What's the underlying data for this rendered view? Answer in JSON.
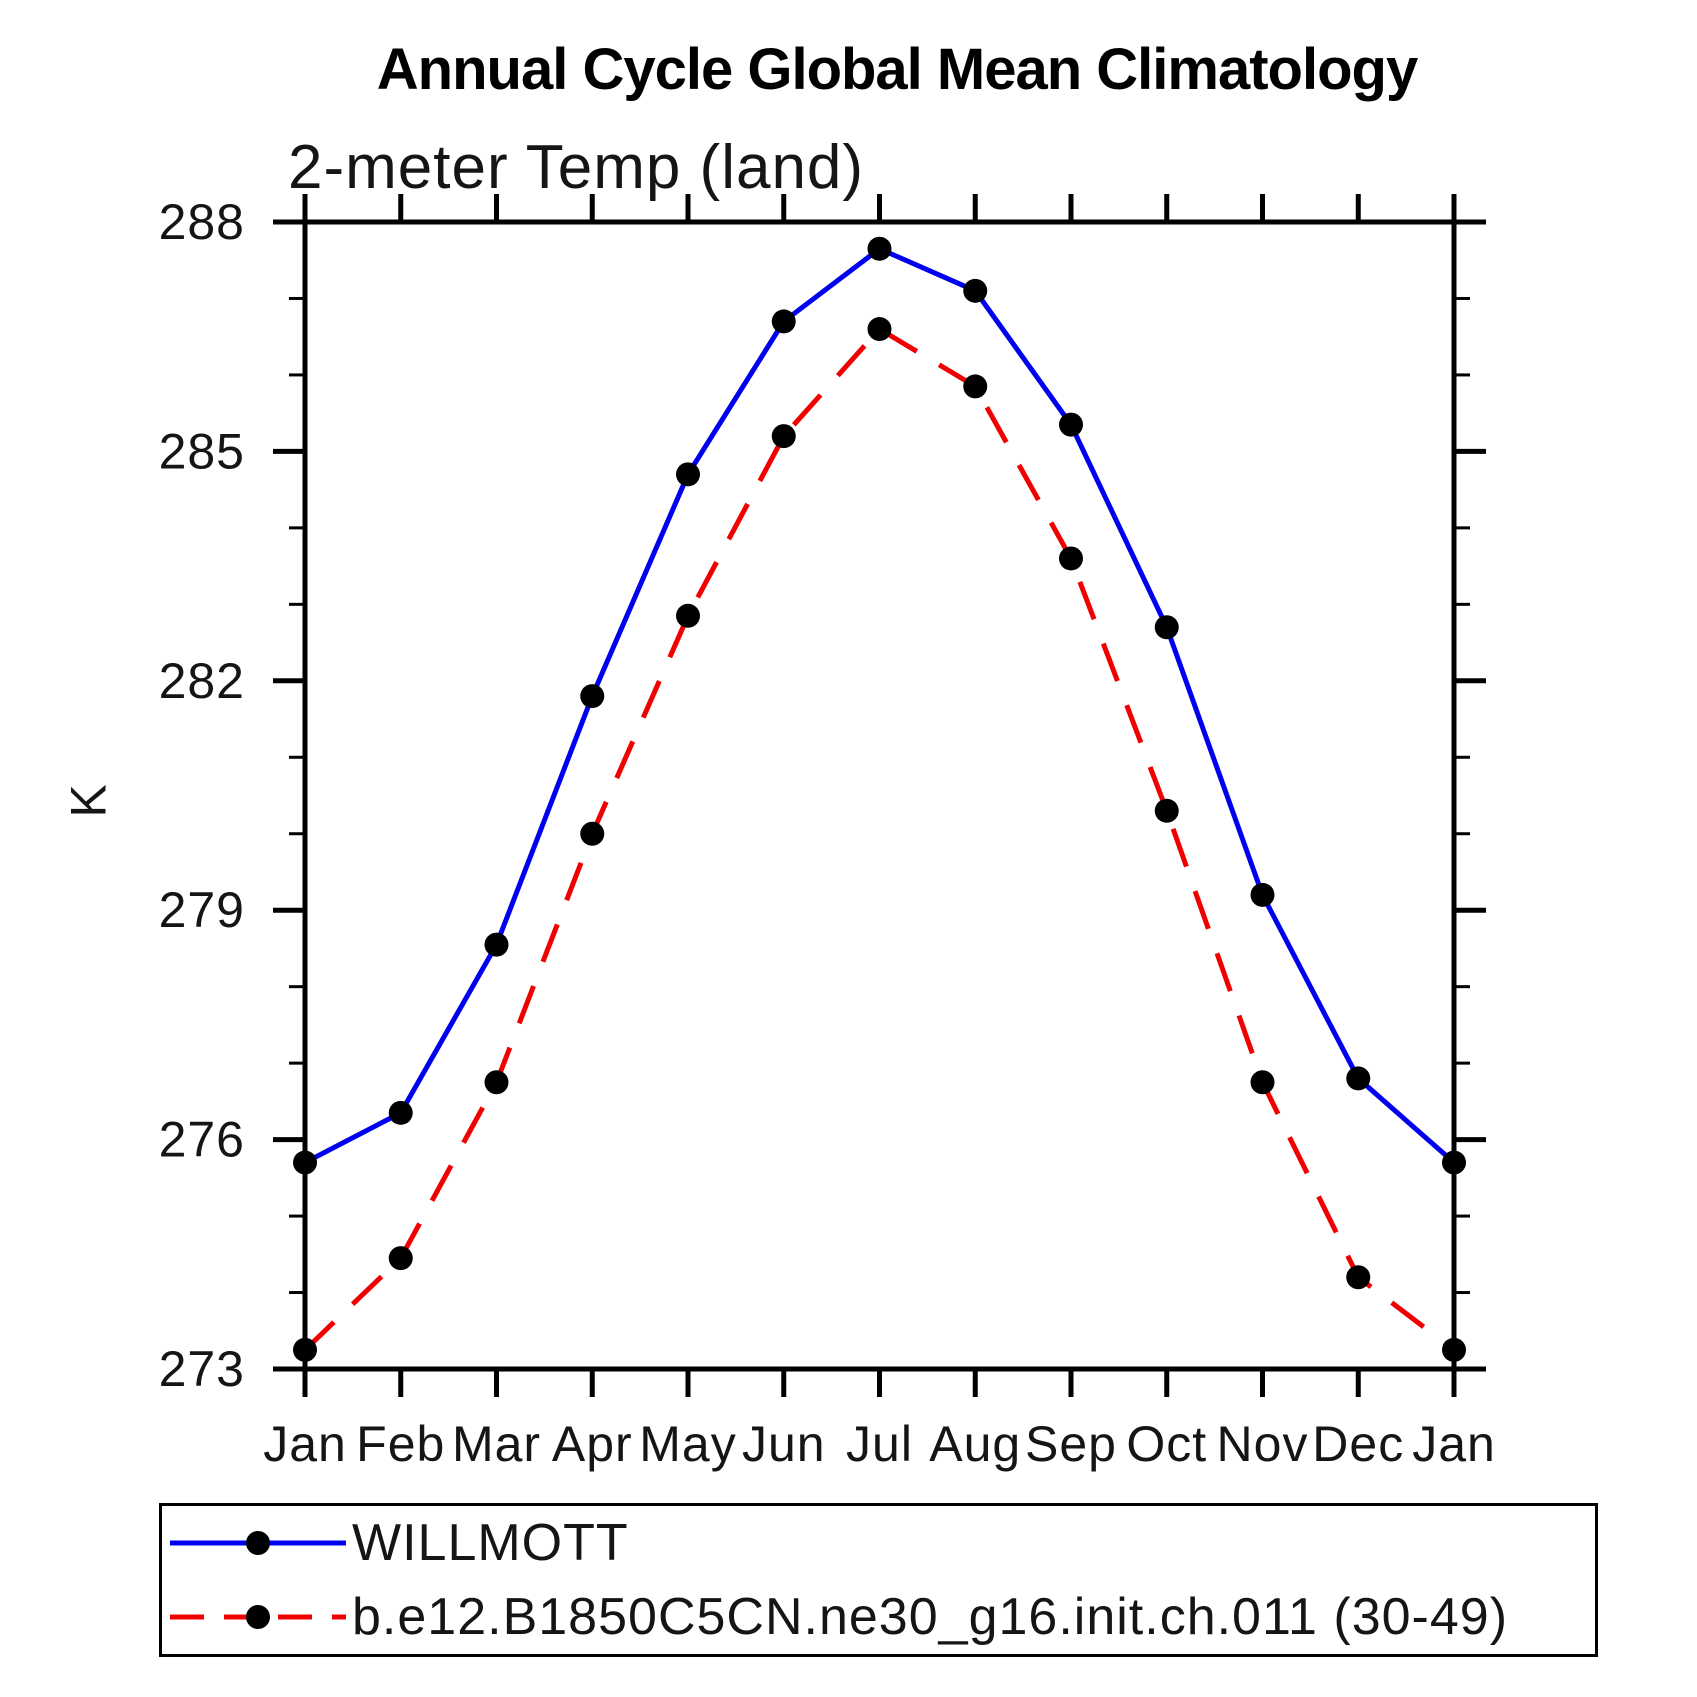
{
  "chart_data": {
    "type": "line",
    "title": "Annual Cycle Global Mean Climatology",
    "subtitle": "2-meter Temp (land)",
    "xlabel": "",
    "ylabel": "K",
    "x_categories": [
      "Jan",
      "Feb",
      "Mar",
      "Apr",
      "May",
      "Jun",
      "Jul",
      "Aug",
      "Sep",
      "Oct",
      "Nov",
      "Dec",
      "Jan"
    ],
    "ylim": [
      273,
      288
    ],
    "y_major_ticks": [
      273,
      276,
      279,
      282,
      285,
      288
    ],
    "y_minor_step": 1,
    "grid": false,
    "legend_position": "bottom-left-box",
    "axis_color": "#000000",
    "marker_color": "#000000",
    "series": [
      {
        "name": "WILLMOTT",
        "color": "#0000f0",
        "style": "solid",
        "marker": "circle",
        "values": [
          275.7,
          276.35,
          278.55,
          281.8,
          284.7,
          286.7,
          287.65,
          287.1,
          285.35,
          282.7,
          279.2,
          276.8,
          275.7
        ]
      },
      {
        "name": "b.e12.B1850C5CN.ne30_g16.init.ch.011 (30-49)",
        "color": "#f00000",
        "style": "dashed",
        "marker": "circle",
        "values": [
          273.25,
          274.45,
          276.75,
          280.0,
          282.85,
          285.2,
          286.6,
          285.85,
          283.6,
          280.3,
          276.75,
          274.2,
          273.25
        ]
      }
    ]
  }
}
